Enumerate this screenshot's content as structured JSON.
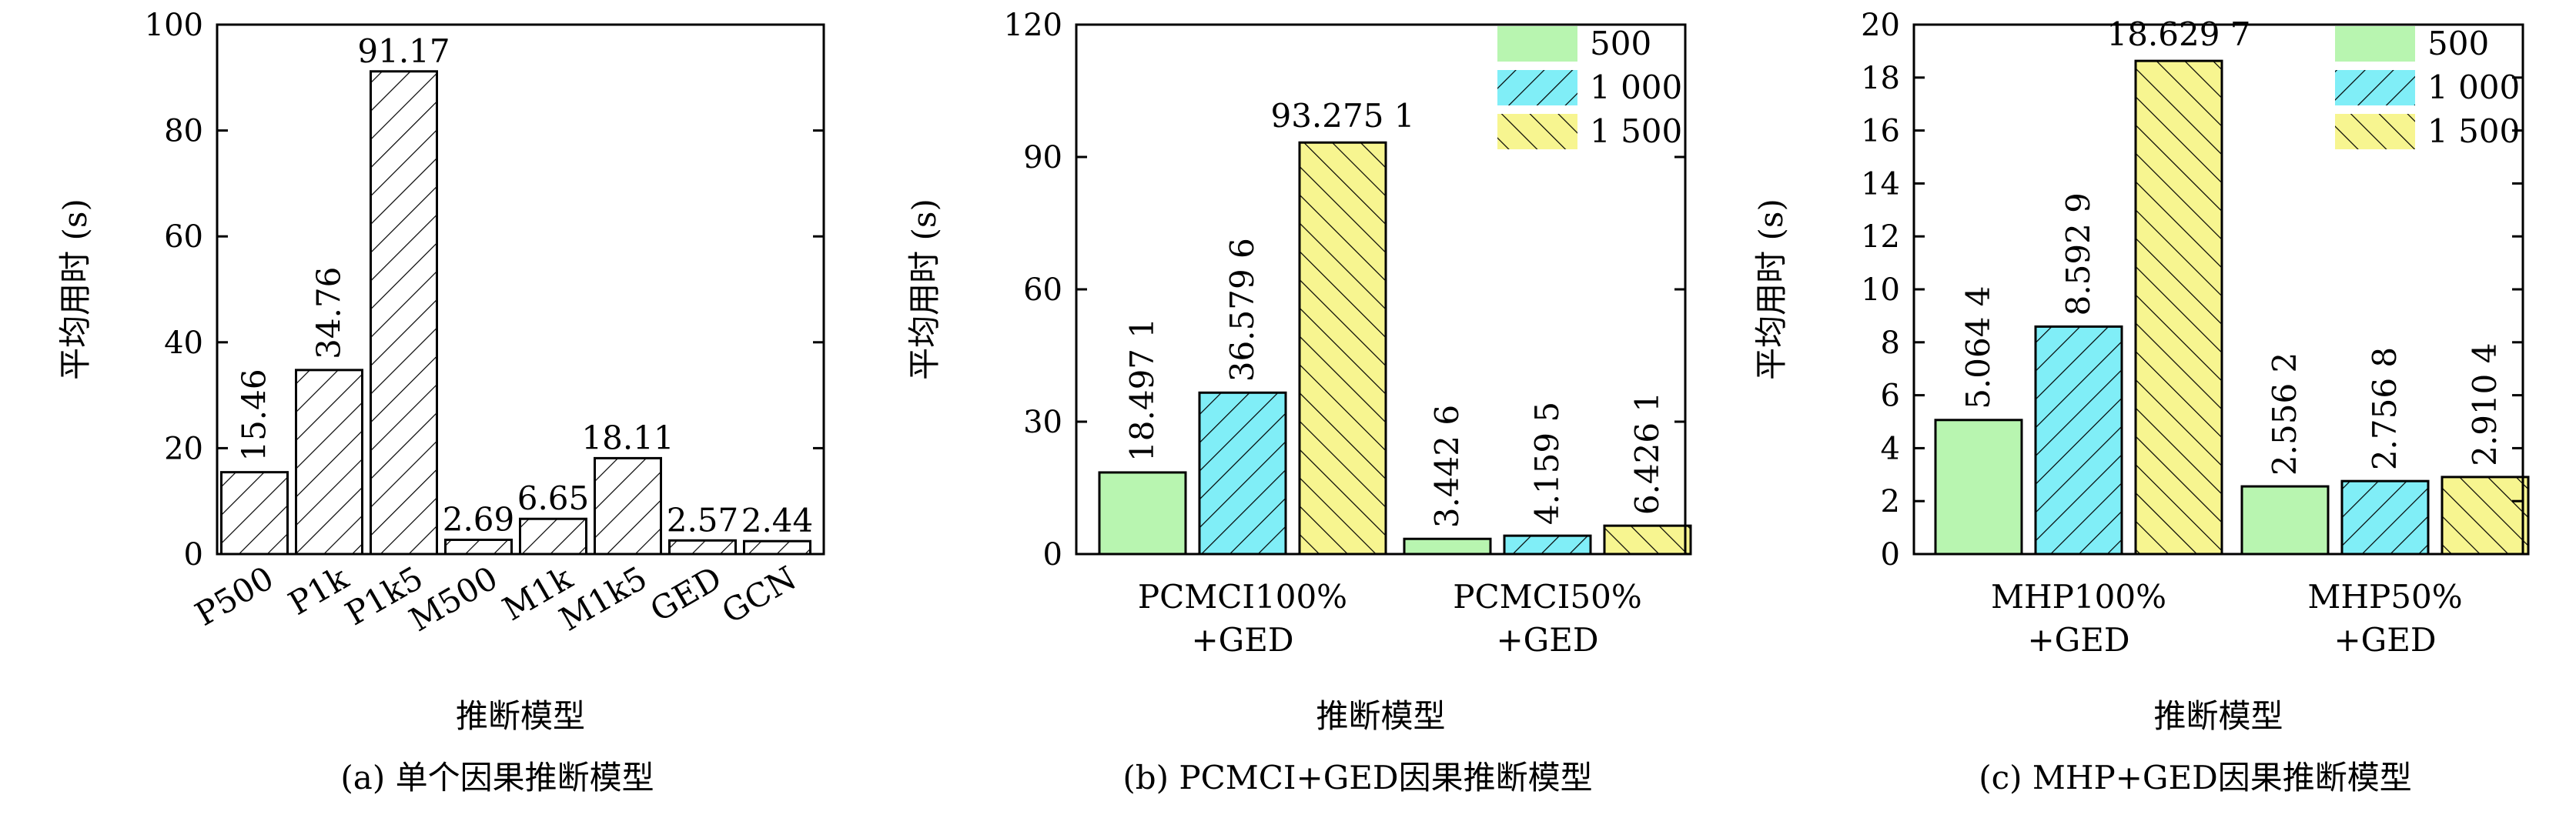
{
  "chart_data": [
    {
      "type": "bar",
      "panel_caption": "(a) 单个因果推断模型",
      "xlabel": "推断模型",
      "ylabel": "平均用时 (s)",
      "ylim": [
        0,
        100
      ],
      "yticks": [
        0,
        20,
        40,
        60,
        80,
        100
      ],
      "categories": [
        "P500",
        "P1k",
        "P1k5",
        "M500",
        "M1k",
        "M1k5",
        "GED",
        "GCN"
      ],
      "values": [
        15.46,
        34.76,
        91.17,
        2.69,
        6.65,
        18.11,
        2.57,
        2.44
      ],
      "value_labels": [
        "15.46",
        "34.76",
        "91.17",
        "2.69",
        "6.65",
        "18.11",
        "2.57",
        "2.44"
      ],
      "label_rotated": [
        true,
        true,
        false,
        false,
        false,
        false,
        false,
        false
      ],
      "fill": "#ffffff",
      "hatch": "forward",
      "grid": false
    },
    {
      "type": "bar",
      "panel_caption": "(b) PCMCI+GED因果推断模型",
      "xlabel": "推断模型",
      "ylabel": "平均用时 (s)",
      "ylim": [
        0,
        120
      ],
      "yticks": [
        0,
        30,
        60,
        90,
        120
      ],
      "categories": [
        [
          "PCMCI100%",
          "+GED"
        ],
        [
          "PCMCI50%",
          "+GED"
        ]
      ],
      "series": [
        {
          "name": "500",
          "color": "#b8f5b0",
          "hatch": "none",
          "values": [
            18.4971,
            3.4426
          ],
          "value_labels": [
            "18.497 1",
            "3.442 6"
          ],
          "label_rotated": [
            true,
            true
          ]
        },
        {
          "name": "1 000",
          "color": "#80eef7",
          "hatch": "forward",
          "values": [
            36.5796,
            4.1595
          ],
          "value_labels": [
            "36.579 6",
            "4.159 5"
          ],
          "label_rotated": [
            true,
            true
          ]
        },
        {
          "name": "1 500",
          "color": "#f7f590",
          "hatch": "back",
          "values": [
            93.2751,
            6.4261
          ],
          "value_labels": [
            "93.275 1",
            "6.426 1"
          ],
          "label_rotated": [
            false,
            true
          ]
        }
      ],
      "legend": "top-right",
      "grid": false
    },
    {
      "type": "bar",
      "panel_caption": "(c) MHP+GED因果推断模型",
      "xlabel": "推断模型",
      "ylabel": "平均用时 (s)",
      "ylim": [
        0,
        20
      ],
      "yticks": [
        0,
        2,
        4,
        6,
        8,
        10,
        12,
        14,
        16,
        18,
        20
      ],
      "categories": [
        [
          "MHP100%",
          "+GED"
        ],
        [
          "MHP50%",
          "+GED"
        ]
      ],
      "series": [
        {
          "name": "500",
          "color": "#b8f5b0",
          "hatch": "none",
          "values": [
            5.0644,
            2.5562
          ],
          "value_labels": [
            "5.064 4",
            "2.556 2"
          ],
          "label_rotated": [
            true,
            true
          ]
        },
        {
          "name": "1 000",
          "color": "#80eef7",
          "hatch": "forward",
          "values": [
            8.5929,
            2.7568
          ],
          "value_labels": [
            "8.592 9",
            "2.756 8"
          ],
          "label_rotated": [
            true,
            true
          ]
        },
        {
          "name": "1 500",
          "color": "#f7f590",
          "hatch": "back",
          "values": [
            18.6297,
            2.9104
          ],
          "value_labels": [
            "18.629 7",
            "2.910 4"
          ],
          "label_rotated": [
            false,
            true
          ]
        }
      ],
      "legend": "top-right",
      "grid": false
    }
  ]
}
